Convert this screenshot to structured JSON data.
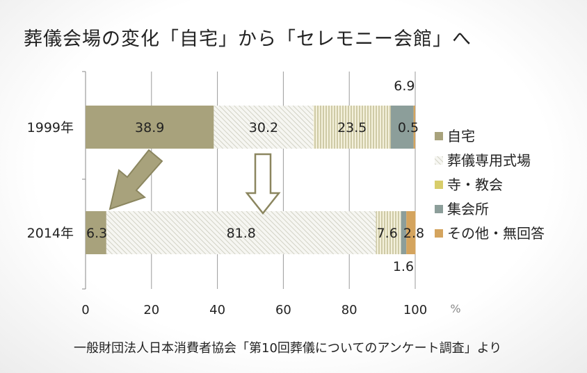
{
  "title": "葬儀会場の変化「自宅」から「セレモニー会館」へ",
  "source": "一般財団法人日本消費者協会「第10回葬儀についてのアンケート調査」より",
  "colors": {
    "自宅": "#a8a27c",
    "葬儀専用式場": "#e7e7de",
    "寺・教会": "#d8cd6a",
    "集会所": "#8c9e9a",
    "その他・無回答": "#d4a45e"
  },
  "chart_data": {
    "type": "bar",
    "orientation": "horizontal",
    "stacked": true,
    "categories": [
      "1999年",
      "2014年"
    ],
    "series": [
      {
        "name": "自宅",
        "values": [
          38.9,
          6.3
        ]
      },
      {
        "name": "葬儀専用式場",
        "values": [
          30.2,
          81.8
        ]
      },
      {
        "name": "寺・教会",
        "values": [
          23.5,
          7.6
        ]
      },
      {
        "name": "集会所",
        "values": [
          6.9,
          1.6
        ]
      },
      {
        "name": "その他・無回答",
        "values": [
          0.5,
          2.8
        ]
      }
    ],
    "xlim": [
      0,
      100
    ],
    "xticks": [
      "0",
      "20",
      "40",
      "60",
      "80",
      "100"
    ],
    "xunit": "%",
    "grid": true,
    "legend": "right",
    "arrows": [
      "down-left hollow-olive arrow from 1999 自宅 to 2014 自宅",
      "down outline arrow from 1999 to 2014 葬儀専用式場"
    ]
  }
}
